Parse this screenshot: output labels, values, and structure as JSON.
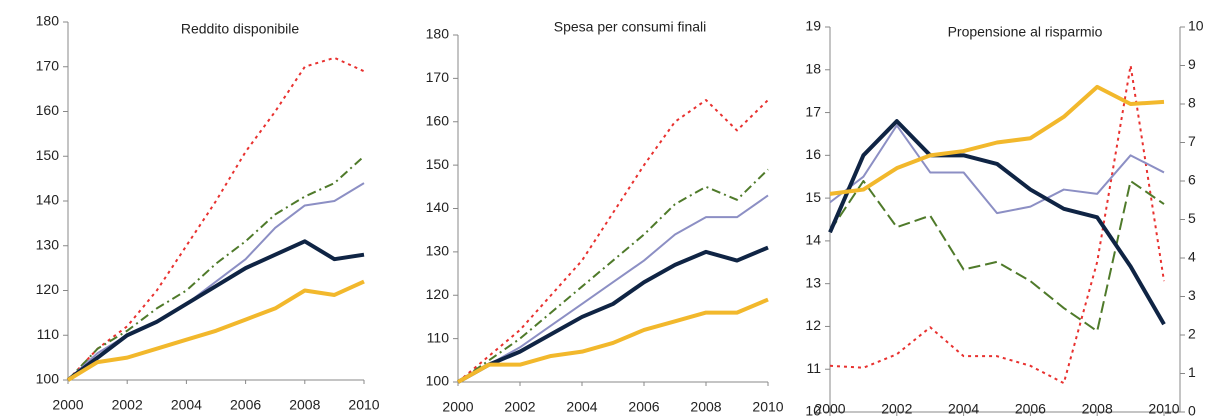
{
  "chart_data": [
    {
      "type": "line",
      "title": "Reddito disponibile",
      "x": [
        2000,
        2001,
        2002,
        2003,
        2004,
        2005,
        2006,
        2007,
        2008,
        2009,
        2010
      ],
      "xlim": [
        2000,
        2010
      ],
      "xticks": [
        2000,
        2002,
        2004,
        2006,
        2008,
        2010
      ],
      "ylim": [
        100,
        180
      ],
      "yticks": [
        100,
        110,
        120,
        130,
        140,
        150,
        160,
        170,
        180
      ],
      "series": [
        {
          "color": "#e8312f",
          "style": "dotted",
          "values": [
            100,
            107,
            112,
            120,
            130,
            140,
            151,
            160,
            170,
            172,
            169
          ]
        },
        {
          "color": "#4f7a2a",
          "style": "dashdot",
          "values": [
            100,
            107,
            111,
            116,
            120,
            126,
            131,
            137,
            141,
            144,
            150
          ]
        },
        {
          "color": "#8c8fc4",
          "style": "solid",
          "values": [
            100,
            106,
            110,
            113,
            117,
            122,
            127,
            134,
            139,
            140,
            144
          ]
        },
        {
          "color": "#0f2444",
          "style": "thick",
          "values": [
            100,
            105,
            110,
            113,
            117,
            121,
            125,
            128,
            131,
            127,
            128
          ]
        },
        {
          "color": "#f2b82c",
          "style": "thick",
          "values": [
            100,
            104,
            105,
            107,
            109,
            111,
            113.5,
            116,
            120,
            119,
            122
          ]
        }
      ]
    },
    {
      "type": "line",
      "title": "Spesa per consumi finali",
      "x": [
        2000,
        2001,
        2002,
        2003,
        2004,
        2005,
        2006,
        2007,
        2008,
        2009,
        2010
      ],
      "xlim": [
        2000,
        2010
      ],
      "xticks": [
        2000,
        2002,
        2004,
        2006,
        2008,
        2010
      ],
      "ylim": [
        100,
        180
      ],
      "yticks": [
        100,
        110,
        120,
        130,
        140,
        150,
        160,
        170,
        180
      ],
      "series": [
        {
          "color": "#e8312f",
          "style": "dotted",
          "values": [
            100,
            106,
            112,
            120,
            128,
            139,
            150,
            160,
            165,
            158,
            165
          ]
        },
        {
          "color": "#4f7a2a",
          "style": "dashdot",
          "values": [
            100,
            105,
            110,
            116,
            122,
            128,
            134,
            141,
            145,
            142,
            149
          ]
        },
        {
          "color": "#8c8fc4",
          "style": "solid",
          "values": [
            100,
            104,
            108,
            113,
            118,
            123,
            128,
            134,
            138,
            138,
            143
          ]
        },
        {
          "color": "#0f2444",
          "style": "thick",
          "values": [
            100,
            104,
            107,
            111,
            115,
            118,
            123,
            127,
            130,
            128,
            131
          ]
        },
        {
          "color": "#f2b82c",
          "style": "thick",
          "values": [
            100,
            104,
            104,
            106,
            107,
            109,
            112,
            114,
            116,
            116,
            119
          ]
        }
      ]
    },
    {
      "type": "line",
      "title": "Propensione al risparmio",
      "x": [
        2000,
        2001,
        2002,
        2003,
        2004,
        2005,
        2006,
        2007,
        2008,
        2009,
        2010
      ],
      "xlim": [
        2000,
        2010
      ],
      "xticks": [
        2000,
        2002,
        2004,
        2006,
        2008,
        2010
      ],
      "ylim": [
        10,
        19
      ],
      "yticks": [
        10,
        11,
        12,
        13,
        14,
        15,
        16,
        17,
        18,
        19
      ],
      "y2lim": [
        0,
        10
      ],
      "y2ticks": [
        0,
        1,
        2,
        3,
        4,
        5,
        6,
        7,
        8,
        9,
        10
      ],
      "series": [
        {
          "color": "#e8312f",
          "style": "dotted",
          "axis": "y2",
          "values": [
            1.2,
            1.15,
            1.5,
            2.2,
            1.45,
            1.45,
            1.2,
            0.75,
            3.9,
            9.0,
            3.4
          ]
        },
        {
          "color": "#4f7a2a",
          "style": "dashed",
          "axis": "y2",
          "values": [
            4.7,
            6.0,
            4.8,
            5.1,
            3.7,
            3.9,
            3.4,
            2.7,
            2.1,
            6.0,
            5.4
          ]
        },
        {
          "color": "#8c8fc4",
          "style": "solid",
          "values": [
            14.9,
            15.5,
            16.7,
            15.6,
            15.6,
            14.65,
            14.8,
            15.2,
            15.1,
            16.0,
            15.6
          ]
        },
        {
          "color": "#0f2444",
          "style": "thick",
          "values": [
            14.2,
            16.0,
            16.8,
            16.0,
            16.0,
            15.8,
            15.2,
            14.75,
            14.55,
            13.4,
            12.05
          ]
        },
        {
          "color": "#f2b82c",
          "style": "thick",
          "values": [
            15.1,
            15.2,
            15.7,
            16.0,
            16.1,
            16.3,
            16.4,
            16.9,
            17.6,
            17.2,
            17.25
          ]
        }
      ]
    }
  ]
}
